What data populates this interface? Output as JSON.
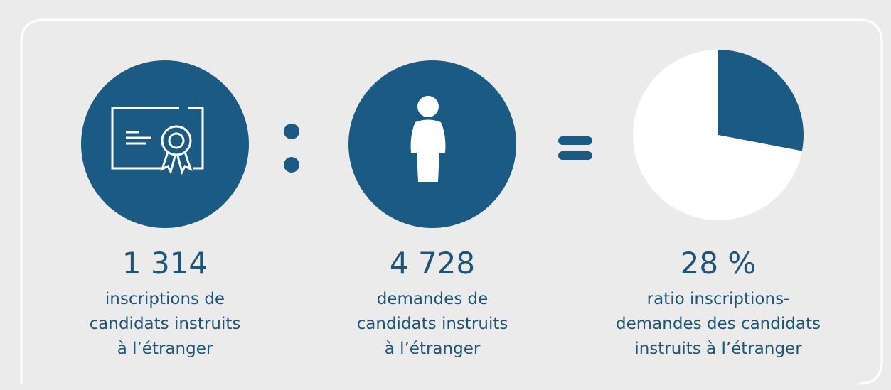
{
  "stats": [
    {
      "number": "1 314",
      "lines": [
        "inscriptions de",
        "candidats instruits",
        "à l’étranger"
      ]
    },
    {
      "number": "4 728",
      "lines": [
        "demandes de",
        "candidats instruits",
        "à l’étranger"
      ]
    }
  ],
  "ratio": {
    "value": 28,
    "label": "28 %",
    "lines": [
      "ratio inscriptions-",
      "demandes des candidats",
      "instruits à l’étranger"
    ],
    "color": "#1b5a82"
  }
}
